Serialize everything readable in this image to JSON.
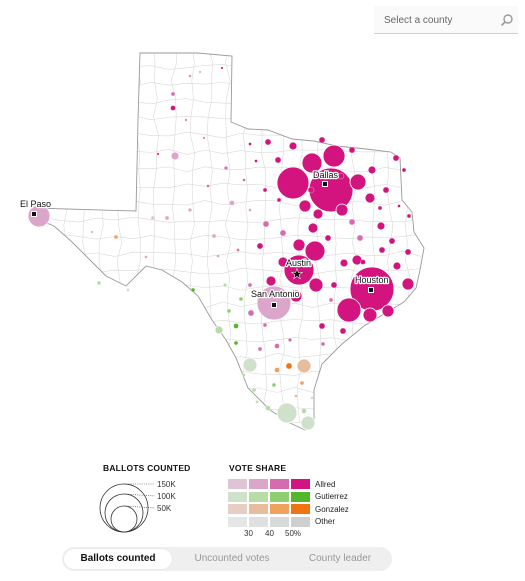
{
  "search": {
    "placeholder": "Select a county"
  },
  "map": {
    "cities": [
      {
        "name": "El Paso"
      },
      {
        "name": "Dallas"
      },
      {
        "name": "Austin"
      },
      {
        "name": "San Antonio"
      },
      {
        "name": "Houston"
      }
    ],
    "county_count_note": "",
    "colors": {
      "allred": [
        "#dfc4d3",
        "#dba6c9",
        "#d66cb0",
        "#d3147f"
      ],
      "gutierrez": [
        "#cfe0cb",
        "#b8dca8",
        "#8fce72",
        "#55b62c"
      ],
      "gonzalez": [
        "#e6cfc2",
        "#e8bd9d",
        "#efa15e",
        "#f07412"
      ],
      "other": [
        "#e6e6e6",
        "#e0e0e0",
        "#d9d9d9",
        "#cfcfcf"
      ],
      "state_fill": "#ffffff",
      "county_line": "#d9d9d9",
      "state_outline": "#9a9a9a"
    }
  },
  "legend": {
    "ballots_title": "BALLOTS COUNTED",
    "ballots_sizes": [
      {
        "label": "150K",
        "value": 150000
      },
      {
        "label": "100K",
        "value": 100000
      },
      {
        "label": "50K",
        "value": 50000
      }
    ],
    "share_title": "VOTE SHARE",
    "candidates": [
      "Allred",
      "Gutierrez",
      "Gonzalez",
      "Other"
    ],
    "share_ticks": [
      "30",
      "40",
      "50%"
    ]
  },
  "toggle": {
    "options": [
      "Ballots counted",
      "Uncounted votes",
      "County leader"
    ],
    "active": "Ballots counted"
  }
}
